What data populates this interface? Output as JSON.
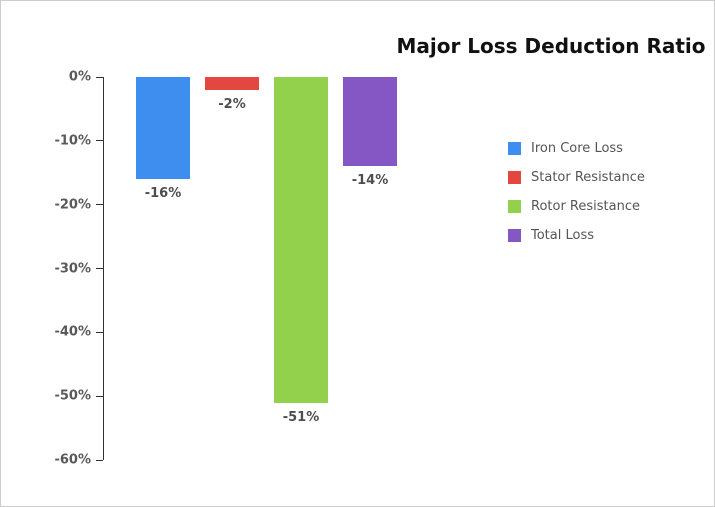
{
  "chart_data": {
    "type": "bar",
    "title": "Major Loss Deduction Ratio",
    "categories": [
      "Iron Core Loss",
      "Stator Resistance",
      "Rotor Resistance",
      "Total Loss"
    ],
    "values": [
      -16,
      -2,
      -51,
      -14
    ],
    "data_labels": [
      "-16%",
      "-2%",
      "-51%",
      "-14%"
    ],
    "colors": [
      "#3E8EF0",
      "#E3473F",
      "#93D14C",
      "#8557C5"
    ],
    "xlabel": "",
    "ylabel": "",
    "ylim": [
      -60,
      0
    ],
    "y_ticks": [
      {
        "value": 0,
        "label": "0%"
      },
      {
        "value": -10,
        "label": "-10%"
      },
      {
        "value": -20,
        "label": "-20%"
      },
      {
        "value": -30,
        "label": "-30%"
      },
      {
        "value": -40,
        "label": "-40%"
      },
      {
        "value": -50,
        "label": "-50%"
      },
      {
        "value": -60,
        "label": "-60%"
      }
    ],
    "grid": false,
    "legend": {
      "position": "right",
      "entries": [
        {
          "label": "Iron Core Loss",
          "color": "#3E8EF0"
        },
        {
          "label": "Stator Resistance",
          "color": "#E3473F"
        },
        {
          "label": "Rotor Resistance",
          "color": "#93D14C"
        },
        {
          "label": "Total Loss",
          "color": "#8557C5"
        }
      ]
    }
  }
}
